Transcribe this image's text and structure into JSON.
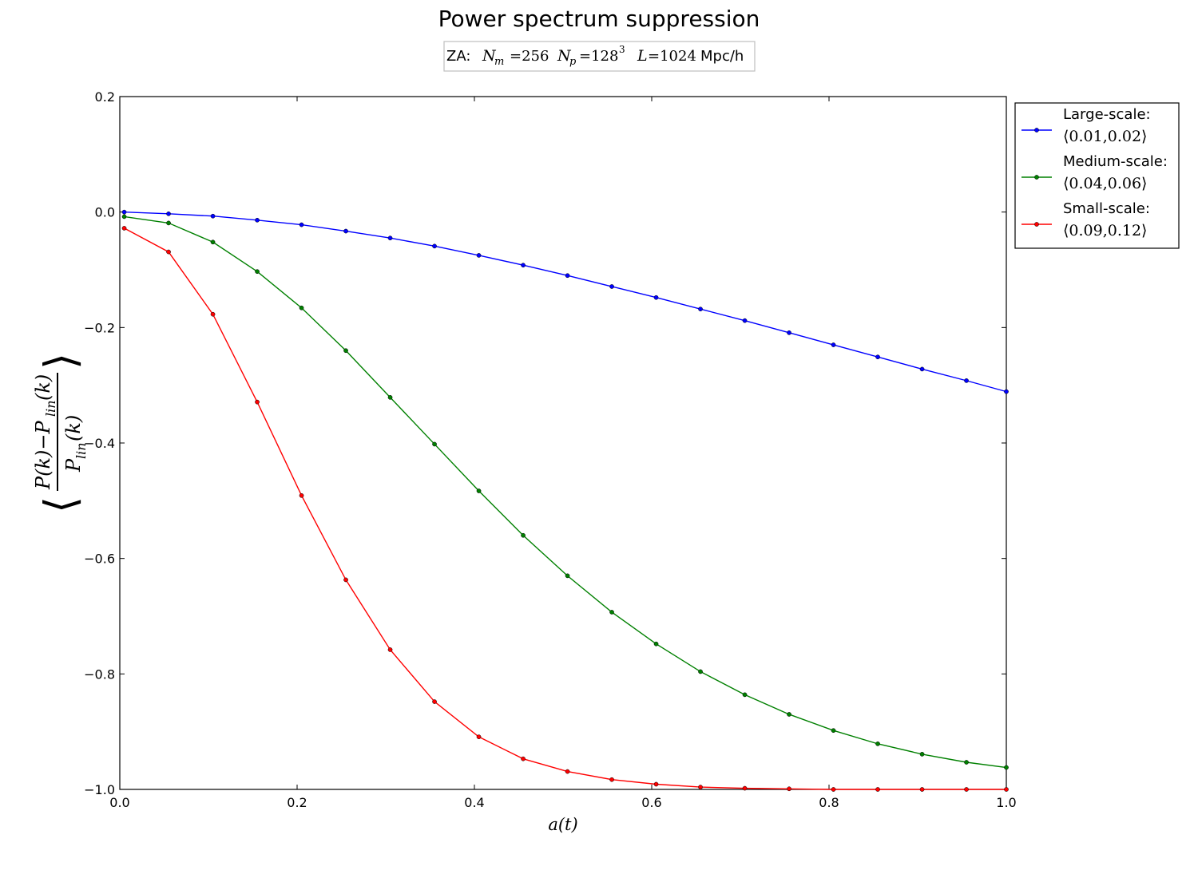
{
  "chart_data": {
    "type": "line",
    "title": "Power spectrum suppression",
    "subtitle": {
      "prefix": "ZA:",
      "nm_label": "N",
      "nm_sub": "m",
      "nm_value": "=256",
      "np_label": "N",
      "np_sub": "p",
      "np_value": "=128",
      "np_exp": "3",
      "l_label": "L",
      "l_value": "=1024",
      "unit": "Mpc/h"
    },
    "xlabel": "a(t)",
    "ylabel": {
      "bracket_left": "⟨",
      "numerator": "P(k)−P",
      "numerator_sub": "lin",
      "numerator_tail": "(k)",
      "denominator": "P",
      "denominator_sub": "lin",
      "denominator_tail": "(k)",
      "bracket_right": "⟩"
    },
    "xlim": [
      0.0,
      1.0
    ],
    "ylim": [
      -1.0,
      0.2
    ],
    "xticks": [
      0.0,
      0.2,
      0.4,
      0.6,
      0.8,
      1.0
    ],
    "xtick_labels": [
      "0.0",
      "0.2",
      "0.4",
      "0.6",
      "0.8",
      "1.0"
    ],
    "yticks": [
      0.2,
      0.0,
      -0.2,
      -0.4,
      -0.6,
      -0.8,
      -1.0
    ],
    "ytick_labels": [
      "0.2",
      "0.0",
      "−0.2",
      "−0.4",
      "−0.6",
      "−0.8",
      "−1.0"
    ],
    "grid": false,
    "legend_position": "outside-right-top",
    "x": [
      0.005,
      0.055,
      0.105,
      0.155,
      0.205,
      0.255,
      0.305,
      0.355,
      0.405,
      0.455,
      0.505,
      0.555,
      0.605,
      0.655,
      0.705,
      0.755,
      0.805,
      0.855,
      0.905,
      0.955,
      1.0
    ],
    "series": [
      {
        "name": "Large-scale:",
        "range_label": "⟨0.01,0.02⟩",
        "color": "#0000ff",
        "values": [
          0.0,
          -0.003,
          -0.007,
          -0.014,
          -0.022,
          -0.033,
          -0.045,
          -0.059,
          -0.075,
          -0.092,
          -0.11,
          -0.129,
          -0.148,
          -0.168,
          -0.188,
          -0.209,
          -0.23,
          -0.251,
          -0.272,
          -0.292,
          -0.311
        ]
      },
      {
        "name": "Medium-scale:",
        "range_label": "⟨0.04,0.06⟩",
        "color": "#008000",
        "values": [
          -0.008,
          -0.019,
          -0.052,
          -0.103,
          -0.166,
          -0.24,
          -0.321,
          -0.402,
          -0.483,
          -0.56,
          -0.63,
          -0.693,
          -0.748,
          -0.796,
          -0.836,
          -0.87,
          -0.898,
          -0.921,
          -0.939,
          -0.953,
          -0.962
        ]
      },
      {
        "name": "Small-scale:",
        "range_label": "⟨0.09,0.12⟩",
        "color": "#ff0000",
        "values": [
          -0.028,
          -0.069,
          -0.177,
          -0.329,
          -0.491,
          -0.637,
          -0.758,
          -0.848,
          -0.909,
          -0.947,
          -0.969,
          -0.983,
          -0.991,
          -0.996,
          -0.998,
          -0.999,
          -1.0,
          -1.0,
          -1.0,
          -1.0,
          -1.0
        ]
      }
    ]
  }
}
